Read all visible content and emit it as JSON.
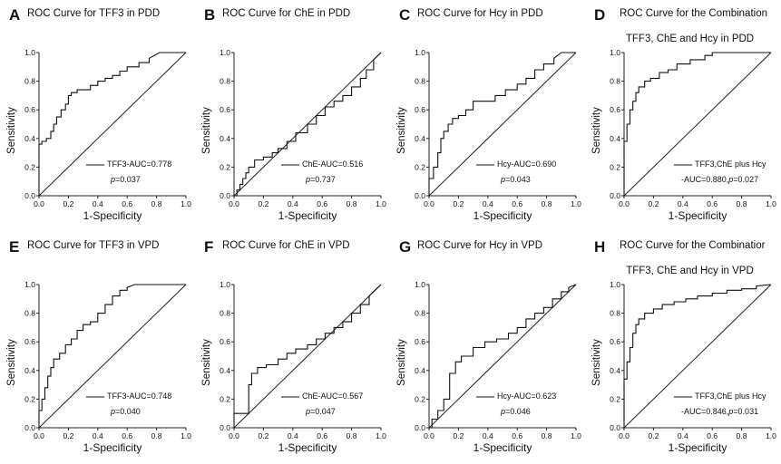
{
  "chart_data": [
    {
      "id": "A",
      "type": "line",
      "letter": "A",
      "title": "ROC Curve for TFF3 in PDD",
      "title2": "",
      "xlabel": "1-Specificity",
      "ylabel": "Sensitivity",
      "xlim": [
        0,
        1
      ],
      "ylim": [
        0,
        1
      ],
      "xticks": [
        "0.0",
        "0.2",
        "0.4",
        "0.6",
        "0.8",
        "1.0"
      ],
      "yticks": [
        "0.0",
        "0.2",
        "0.4",
        "0.6",
        "0.8",
        "1.0"
      ],
      "legend": "TFF3-AUC=0.778",
      "legend2": "",
      "p_label": "p",
      "p_value": "=0.037",
      "series": [
        {
          "x": [
            0,
            0,
            0.02,
            0.02,
            0.05,
            0.05,
            0.08,
            0.08,
            0.1,
            0.1,
            0.12,
            0.12,
            0.15,
            0.15,
            0.18,
            0.18,
            0.2,
            0.2,
            0.22,
            0.22,
            0.26,
            0.26,
            0.3,
            0.3,
            0.35,
            0.35,
            0.4,
            0.4,
            0.45,
            0.45,
            0.5,
            0.5,
            0.55,
            0.55,
            0.6,
            0.6,
            0.68,
            0.68,
            0.75,
            0.75,
            0.82,
            1.0
          ],
          "y": [
            0,
            0.36,
            0.36,
            0.38,
            0.38,
            0.4,
            0.4,
            0.45,
            0.45,
            0.5,
            0.5,
            0.55,
            0.55,
            0.6,
            0.6,
            0.64,
            0.64,
            0.7,
            0.7,
            0.72,
            0.72,
            0.74,
            0.74,
            0.74,
            0.74,
            0.77,
            0.77,
            0.8,
            0.8,
            0.82,
            0.82,
            0.84,
            0.84,
            0.87,
            0.87,
            0.9,
            0.9,
            0.93,
            0.93,
            0.96,
            1.0,
            1.0
          ]
        }
      ]
    },
    {
      "id": "B",
      "type": "line",
      "letter": "B",
      "title": "ROC Curve for ChE in PDD",
      "title2": "",
      "xlabel": "1-Specificity",
      "ylabel": "Sensitivity",
      "xlim": [
        0,
        1
      ],
      "ylim": [
        0,
        1
      ],
      "xticks": [
        "0.0",
        "0.2",
        "0.4",
        "0.6",
        "0.8",
        "1.0"
      ],
      "yticks": [
        "0.0",
        "0.2",
        "0.4",
        "0.6",
        "0.8",
        "1.0"
      ],
      "legend": "ChE-AUC=0.516",
      "legend2": "",
      "p_label": "p",
      "p_value": "=0.737",
      "series": [
        {
          "x": [
            0,
            0.02,
            0.02,
            0.04,
            0.04,
            0.06,
            0.06,
            0.08,
            0.08,
            0.1,
            0.1,
            0.14,
            0.14,
            0.2,
            0.2,
            0.26,
            0.26,
            0.3,
            0.3,
            0.36,
            0.36,
            0.42,
            0.42,
            0.5,
            0.5,
            0.56,
            0.56,
            0.62,
            0.62,
            0.68,
            0.68,
            0.74,
            0.74,
            0.8,
            0.8,
            0.86,
            0.86,
            0.9,
            0.9,
            0.95,
            0.95,
            1.0
          ],
          "y": [
            0,
            0,
            0.04,
            0.04,
            0.08,
            0.08,
            0.12,
            0.12,
            0.16,
            0.16,
            0.2,
            0.2,
            0.25,
            0.25,
            0.27,
            0.27,
            0.3,
            0.3,
            0.33,
            0.33,
            0.38,
            0.38,
            0.44,
            0.44,
            0.5,
            0.5,
            0.56,
            0.56,
            0.62,
            0.62,
            0.66,
            0.66,
            0.7,
            0.7,
            0.76,
            0.76,
            0.82,
            0.82,
            0.88,
            0.88,
            0.95,
            1.0
          ]
        }
      ]
    },
    {
      "id": "C",
      "type": "line",
      "letter": "C",
      "title": "ROC Curve for Hcy in PDD",
      "title2": "",
      "xlabel": "1-Specificity",
      "ylabel": "Sensitivity",
      "xlim": [
        0,
        1
      ],
      "ylim": [
        0,
        1
      ],
      "xticks": [
        "0.0",
        "0.2",
        "0.4",
        "0.6",
        "0.8",
        "1.0"
      ],
      "yticks": [
        "0.0",
        "0.2",
        "0.4",
        "0.6",
        "0.8",
        "1.0"
      ],
      "legend": "Hcy-AUC=0.690",
      "legend2": "",
      "p_label": "p",
      "p_value": "=0.043",
      "series": [
        {
          "x": [
            0,
            0,
            0.03,
            0.03,
            0.06,
            0.06,
            0.08,
            0.08,
            0.1,
            0.1,
            0.13,
            0.13,
            0.16,
            0.16,
            0.2,
            0.2,
            0.25,
            0.25,
            0.3,
            0.3,
            0.38,
            0.38,
            0.45,
            0.45,
            0.52,
            0.52,
            0.6,
            0.6,
            0.66,
            0.66,
            0.72,
            0.72,
            0.78,
            0.78,
            0.85,
            0.85,
            0.9,
            1.0
          ],
          "y": [
            0,
            0.12,
            0.12,
            0.2,
            0.2,
            0.3,
            0.3,
            0.4,
            0.4,
            0.45,
            0.45,
            0.5,
            0.5,
            0.54,
            0.54,
            0.56,
            0.56,
            0.6,
            0.6,
            0.66,
            0.66,
            0.66,
            0.66,
            0.7,
            0.7,
            0.74,
            0.74,
            0.78,
            0.78,
            0.82,
            0.82,
            0.88,
            0.88,
            0.92,
            0.92,
            0.96,
            1.0,
            1.0
          ]
        }
      ]
    },
    {
      "id": "D",
      "type": "line",
      "letter": "D",
      "title": "ROC Curve for the Combination",
      "title2": "TFF3, ChE and Hcy in PDD",
      "xlabel": "1-Specificity",
      "ylabel": "Sensitivity",
      "xlim": [
        0,
        1
      ],
      "ylim": [
        0,
        1
      ],
      "xticks": [
        "0.0",
        "0.2",
        "0.4",
        "0.6",
        "0.8",
        "1.0"
      ],
      "yticks": [
        "0.0",
        "0.2",
        "0.4",
        "0.6",
        "0.8",
        "1.0"
      ],
      "legend": "TFF3,ChE plus Hcy",
      "legend2": "-AUC=0.880,",
      "p_label": "p",
      "p_value": "=0.027",
      "series": [
        {
          "x": [
            0,
            0,
            0.02,
            0.02,
            0.04,
            0.04,
            0.06,
            0.06,
            0.08,
            0.08,
            0.1,
            0.1,
            0.14,
            0.14,
            0.18,
            0.18,
            0.24,
            0.24,
            0.3,
            0.3,
            0.36,
            0.36,
            0.45,
            0.45,
            0.55,
            0.55,
            0.6,
            0.6,
            1.0
          ],
          "y": [
            0,
            0.38,
            0.38,
            0.5,
            0.5,
            0.6,
            0.6,
            0.66,
            0.66,
            0.72,
            0.72,
            0.76,
            0.76,
            0.8,
            0.8,
            0.82,
            0.82,
            0.86,
            0.86,
            0.88,
            0.88,
            0.92,
            0.92,
            0.95,
            0.95,
            0.98,
            0.98,
            1.0,
            1.0
          ]
        }
      ]
    },
    {
      "id": "E",
      "type": "line",
      "letter": "E",
      "title": "ROC Curve for TFF3 in VPD",
      "title2": "",
      "xlabel": "1-Specificity",
      "ylabel": "Sensitivity",
      "xlim": [
        0,
        1
      ],
      "ylim": [
        0,
        1
      ],
      "xticks": [
        "0.0",
        "0.2",
        "0.4",
        "0.6",
        "0.8",
        "1.0"
      ],
      "yticks": [
        "0.0",
        "0.2",
        "0.4",
        "0.6",
        "0.8",
        "1.0"
      ],
      "legend": "TFF3-AUC=0.748",
      "legend2": "",
      "p_label": "p",
      "p_value": "=0.040",
      "series": [
        {
          "x": [
            0,
            0,
            0.02,
            0.02,
            0.04,
            0.04,
            0.06,
            0.06,
            0.08,
            0.08,
            0.1,
            0.1,
            0.14,
            0.14,
            0.18,
            0.18,
            0.22,
            0.22,
            0.26,
            0.26,
            0.3,
            0.3,
            0.35,
            0.35,
            0.4,
            0.4,
            0.45,
            0.45,
            0.5,
            0.5,
            0.55,
            0.55,
            0.6,
            0.6,
            0.65,
            1.0
          ],
          "y": [
            0,
            0.12,
            0.12,
            0.2,
            0.2,
            0.28,
            0.28,
            0.36,
            0.36,
            0.42,
            0.42,
            0.48,
            0.48,
            0.52,
            0.52,
            0.58,
            0.58,
            0.62,
            0.62,
            0.68,
            0.68,
            0.72,
            0.72,
            0.74,
            0.74,
            0.8,
            0.8,
            0.86,
            0.86,
            0.92,
            0.92,
            0.96,
            0.96,
            0.98,
            1.0,
            1.0
          ]
        }
      ]
    },
    {
      "id": "F",
      "type": "line",
      "letter": "F",
      "title": "ROC Curve for ChE in VPD",
      "title2": "",
      "xlabel": "1-Specificity",
      "ylabel": "Sensitivity",
      "xlim": [
        0,
        1
      ],
      "ylim": [
        0,
        1
      ],
      "xticks": [
        "0.0",
        "0.2",
        "0.4",
        "0.6",
        "0.8",
        "1.0"
      ],
      "yticks": [
        "0.0",
        "0.2",
        "0.4",
        "0.6",
        "0.8",
        "1.0"
      ],
      "legend": "ChE-AUC=0.567",
      "legend2": "",
      "p_label": "p",
      "p_value": "=0.047",
      "series": [
        {
          "x": [
            0,
            0,
            0.1,
            0.1,
            0.12,
            0.12,
            0.16,
            0.16,
            0.22,
            0.22,
            0.3,
            0.3,
            0.36,
            0.36,
            0.42,
            0.42,
            0.5,
            0.5,
            0.56,
            0.56,
            0.62,
            0.62,
            0.68,
            0.68,
            0.74,
            0.74,
            0.8,
            0.8,
            0.86,
            0.86,
            0.92,
            0.92,
            0.97,
            1.0
          ],
          "y": [
            0,
            0.1,
            0.1,
            0.3,
            0.3,
            0.38,
            0.38,
            0.42,
            0.42,
            0.44,
            0.44,
            0.48,
            0.48,
            0.52,
            0.52,
            0.55,
            0.55,
            0.58,
            0.58,
            0.62,
            0.62,
            0.66,
            0.66,
            0.7,
            0.7,
            0.74,
            0.74,
            0.8,
            0.8,
            0.86,
            0.86,
            0.92,
            0.97,
            1.0
          ]
        }
      ]
    },
    {
      "id": "G",
      "type": "line",
      "letter": "G",
      "title": "ROC Curve for Hcy in VPD",
      "title2": "",
      "xlabel": "1-Specificity",
      "ylabel": "Sensitivity",
      "xlim": [
        0,
        1
      ],
      "ylim": [
        0,
        1
      ],
      "xticks": [
        "0.0",
        "0.2",
        "0.4",
        "0.6",
        "0.8",
        "1.0"
      ],
      "yticks": [
        "0.0",
        "0.2",
        "0.4",
        "0.6",
        "0.8",
        "1.0"
      ],
      "legend": "Hcy-AUC=0.623",
      "legend2": "",
      "p_label": "p",
      "p_value": "=0.046",
      "series": [
        {
          "x": [
            0,
            0.02,
            0.02,
            0.06,
            0.06,
            0.1,
            0.1,
            0.14,
            0.14,
            0.18,
            0.18,
            0.22,
            0.22,
            0.3,
            0.3,
            0.38,
            0.38,
            0.46,
            0.46,
            0.54,
            0.54,
            0.6,
            0.6,
            0.66,
            0.66,
            0.72,
            0.72,
            0.78,
            0.78,
            0.84,
            0.84,
            0.9,
            0.9,
            0.95,
            0.95,
            1.0
          ],
          "y": [
            0,
            0,
            0.06,
            0.06,
            0.12,
            0.12,
            0.2,
            0.2,
            0.38,
            0.38,
            0.46,
            0.46,
            0.5,
            0.5,
            0.56,
            0.56,
            0.6,
            0.6,
            0.62,
            0.62,
            0.66,
            0.66,
            0.7,
            0.7,
            0.76,
            0.76,
            0.8,
            0.8,
            0.84,
            0.84,
            0.9,
            0.9,
            0.95,
            0.95,
            0.98,
            1.0
          ]
        }
      ]
    },
    {
      "id": "H",
      "type": "line",
      "letter": "H",
      "title": "ROC Curve for the Combinatior",
      "title2": "TFF3, ChE and Hcy in VPD",
      "xlabel": "1-Specificity",
      "ylabel": "Sensitivity",
      "xlim": [
        0,
        1
      ],
      "ylim": [
        0,
        1
      ],
      "xticks": [
        "0.0",
        "0.2",
        "0.4",
        "0.6",
        "0.8",
        "1.0"
      ],
      "yticks": [
        "0.0",
        "0.2",
        "0.4",
        "0.6",
        "0.8",
        "1.0"
      ],
      "legend": "TFF3,ChE plus Hcy",
      "legend2": "-AUC=0.846,",
      "p_label": "p",
      "p_value": "=0.031",
      "series": [
        {
          "x": [
            0,
            0,
            0.02,
            0.02,
            0.04,
            0.04,
            0.06,
            0.06,
            0.08,
            0.08,
            0.1,
            0.1,
            0.14,
            0.14,
            0.2,
            0.2,
            0.26,
            0.26,
            0.34,
            0.34,
            0.42,
            0.42,
            0.5,
            0.5,
            0.6,
            0.6,
            0.7,
            0.7,
            0.8,
            0.8,
            0.9,
            0.9,
            1.0
          ],
          "y": [
            0,
            0.34,
            0.34,
            0.46,
            0.46,
            0.56,
            0.56,
            0.66,
            0.66,
            0.72,
            0.72,
            0.76,
            0.76,
            0.8,
            0.8,
            0.83,
            0.83,
            0.86,
            0.86,
            0.88,
            0.88,
            0.9,
            0.9,
            0.92,
            0.92,
            0.94,
            0.94,
            0.96,
            0.96,
            0.97,
            0.97,
            0.99,
            1.0
          ]
        }
      ]
    }
  ]
}
